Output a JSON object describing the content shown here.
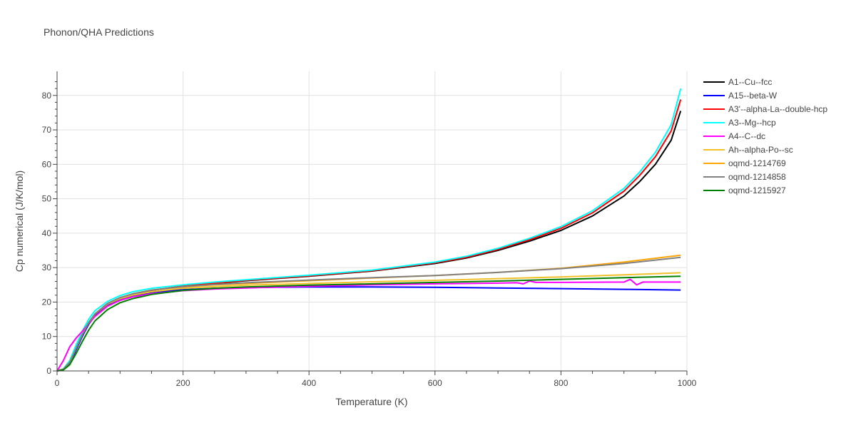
{
  "chart_data": {
    "type": "line",
    "title": "Phonon/QHA Predictions",
    "xlabel": "Temperature (K)",
    "ylabel": "Cp numerical (J/K/mol)",
    "xlim": [
      0,
      1000
    ],
    "ylim": [
      0,
      87
    ],
    "xticks": [
      0,
      200,
      400,
      600,
      800,
      1000
    ],
    "yticks": [
      0,
      10,
      20,
      30,
      40,
      50,
      60,
      70,
      80
    ],
    "grid": true,
    "legend_position": "right",
    "series": [
      {
        "name": "A1--Cu--fcc",
        "color": "#000000",
        "x": [
          0,
          10,
          20,
          30,
          40,
          50,
          60,
          80,
          100,
          120,
          150,
          200,
          250,
          300,
          400,
          500,
          600,
          650,
          700,
          750,
          800,
          850,
          900,
          925,
          950,
          975,
          990
        ],
        "y": [
          0,
          0.5,
          2.5,
          6.5,
          10.5,
          14,
          16.5,
          19.5,
          21.2,
          22.3,
          23.4,
          24.6,
          25.4,
          26.2,
          27.5,
          29,
          31.2,
          32.8,
          35,
          37.7,
          40.8,
          45,
          50.8,
          55,
          60,
          67,
          75.5
        ]
      },
      {
        "name": "A15--beta-W",
        "color": "#0000ff",
        "x": [
          0,
          10,
          20,
          30,
          40,
          50,
          60,
          80,
          100,
          120,
          150,
          200,
          250,
          300,
          400,
          500,
          600,
          700,
          800,
          900,
          990
        ],
        "y": [
          0,
          0.4,
          2.2,
          6,
          10,
          13.5,
          16,
          19,
          20.8,
          21.9,
          22.8,
          23.6,
          24,
          24.2,
          24.4,
          24.4,
          24.3,
          24.1,
          23.9,
          23.7,
          23.5
        ]
      },
      {
        "name": "A3'--alpha-La--double-hcp",
        "color": "#ff0000",
        "x": [
          0,
          10,
          20,
          30,
          40,
          50,
          60,
          80,
          100,
          120,
          150,
          200,
          250,
          300,
          400,
          500,
          600,
          650,
          700,
          750,
          800,
          850,
          900,
          925,
          950,
          975,
          990
        ],
        "y": [
          0,
          0.5,
          2.5,
          6.5,
          10.5,
          14,
          16.5,
          19.5,
          21.2,
          22.3,
          23.4,
          24.6,
          25.5,
          26.3,
          27.6,
          29.1,
          31.4,
          33,
          35.3,
          38.1,
          41.4,
          45.9,
          52.2,
          56.8,
          62.2,
          69.7,
          78.8
        ]
      },
      {
        "name": "A3--Mg--hcp",
        "color": "#00ffff",
        "x": [
          0,
          10,
          20,
          30,
          40,
          50,
          60,
          80,
          100,
          120,
          150,
          200,
          250,
          300,
          400,
          500,
          600,
          650,
          700,
          750,
          800,
          850,
          900,
          925,
          950,
          975,
          990
        ],
        "y": [
          0,
          0.6,
          3,
          7.5,
          11.5,
          15,
          17.5,
          20.2,
          21.9,
          23,
          24,
          25,
          25.8,
          26.5,
          27.8,
          29.3,
          31.6,
          33.3,
          35.6,
          38.5,
          41.9,
          46.5,
          53,
          57.8,
          63.5,
          71.5,
          82
        ]
      },
      {
        "name": "A4--C--dc",
        "color": "#ff00ff",
        "x": [
          0,
          10,
          20,
          30,
          40,
          50,
          60,
          80,
          100,
          120,
          150,
          200,
          250,
          300,
          400,
          500,
          600,
          700,
          730,
          740,
          750,
          760,
          800,
          900,
          910,
          920,
          930,
          990
        ],
        "y": [
          0,
          3,
          7,
          9.5,
          11.5,
          13.8,
          15.8,
          18.8,
          20.5,
          21.5,
          22.4,
          23.3,
          23.8,
          24.1,
          24.6,
          25,
          25.3,
          25.5,
          25.6,
          25.3,
          26.1,
          25.7,
          25.7,
          25.8,
          26.6,
          25,
          25.8,
          25.8
        ]
      },
      {
        "name": "Ah--alpha-Po--sc",
        "color": "#f2c029",
        "x": [
          0,
          10,
          20,
          30,
          40,
          50,
          60,
          80,
          100,
          120,
          150,
          200,
          250,
          300,
          400,
          500,
          600,
          700,
          800,
          900,
          990
        ],
        "y": [
          0,
          0.5,
          2.5,
          6.5,
          10.5,
          14,
          16.5,
          19.4,
          21,
          22,
          23,
          24,
          24.5,
          24.9,
          25.4,
          25.9,
          26.3,
          26.8,
          27.3,
          27.9,
          28.5
        ]
      },
      {
        "name": "oqmd-1214769",
        "color": "#ffa500",
        "x": [
          0,
          10,
          20,
          30,
          40,
          50,
          60,
          80,
          100,
          120,
          150,
          200,
          250,
          300,
          400,
          500,
          600,
          700,
          800,
          900,
          990
        ],
        "y": [
          0,
          0.5,
          2.5,
          6.5,
          10.5,
          14,
          16.5,
          19.6,
          21.3,
          22.4,
          23.5,
          24.4,
          25,
          25.4,
          26.2,
          27,
          27.7,
          28.6,
          29.8,
          31.6,
          33.6
        ]
      },
      {
        "name": "oqmd-1214858",
        "color": "#808080",
        "x": [
          0,
          10,
          20,
          30,
          40,
          50,
          60,
          80,
          100,
          120,
          150,
          200,
          250,
          300,
          400,
          500,
          600,
          700,
          800,
          900,
          990
        ],
        "y": [
          0,
          0.5,
          2.5,
          6.5,
          10.5,
          14,
          16.5,
          19.6,
          21.3,
          22.4,
          23.5,
          24.5,
          25.1,
          25.6,
          26.4,
          27.1,
          27.7,
          28.6,
          29.7,
          31.2,
          33
        ]
      },
      {
        "name": "oqmd-1215927",
        "color": "#008000",
        "x": [
          0,
          10,
          20,
          30,
          40,
          50,
          60,
          80,
          100,
          120,
          150,
          200,
          250,
          300,
          400,
          500,
          600,
          700,
          800,
          900,
          990
        ],
        "y": [
          0,
          0.3,
          1.8,
          5,
          8.5,
          11.8,
          14.5,
          17.8,
          19.8,
          21,
          22.2,
          23.4,
          24,
          24.4,
          24.9,
          25.3,
          25.7,
          26.1,
          26.6,
          27.1,
          27.5
        ]
      }
    ]
  }
}
